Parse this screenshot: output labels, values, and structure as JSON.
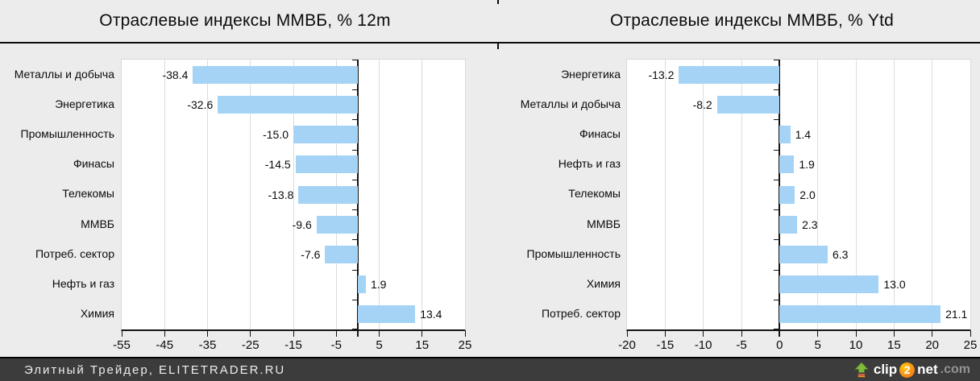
{
  "page": {
    "background": "#ECECEC"
  },
  "chart_data": [
    {
      "type": "bar",
      "orientation": "horizontal",
      "title": "Отраслевые индексы ММВБ, % 12m",
      "categories": [
        "Металлы и добыча",
        "Энергетика",
        "Промышленность",
        "Финасы",
        "Телекомы",
        "ММВБ",
        "Потреб. сектор",
        "Нефть и газ",
        "Химия"
      ],
      "values": [
        -38.4,
        -32.6,
        -15.0,
        -14.5,
        -13.8,
        -9.6,
        -7.6,
        1.9,
        13.4
      ],
      "value_label_format": "0.0",
      "xlim": [
        -55,
        25
      ],
      "tick_step": 10,
      "tick_labels": [
        "-55",
        "-45",
        "-35",
        "-25",
        "-15",
        "-5",
        "5",
        "15",
        "25"
      ],
      "xlabel": "",
      "ylabel": "",
      "grid": true,
      "legend": "none",
      "bar_color": "#A4D3F6",
      "grid_color": "#DCDCDC",
      "axis_color": "#141414"
    },
    {
      "type": "bar",
      "orientation": "horizontal",
      "title": "Отраслевые индексы ММВБ, % Ytd",
      "categories": [
        "Энергетика",
        "Металлы и добыча",
        "Финасы",
        "Нефть и газ",
        "Телекомы",
        "ММВБ",
        "Промышленность",
        "Химия",
        "Потреб. сектор"
      ],
      "values": [
        -13.2,
        -8.2,
        1.4,
        1.9,
        2.0,
        2.3,
        6.3,
        13.0,
        21.1
      ],
      "value_label_format": "0.0",
      "xlim": [
        -20,
        25
      ],
      "tick_step": 5,
      "tick_labels": [
        "-20",
        "-15",
        "-10",
        "-5",
        "0",
        "5",
        "10",
        "15",
        "20",
        "25"
      ],
      "xlabel": "",
      "ylabel": "",
      "grid": true,
      "legend": "none",
      "bar_color": "#A4D3F6",
      "grid_color": "#DCDCDC",
      "axis_color": "#141414"
    }
  ],
  "footer": {
    "source_text": "Элитный Трейдер, ELITETRADER.RU",
    "bg_color": "#3C3C3C",
    "watermark": {
      "prefix": "clip",
      "number": "2",
      "suffix": "net",
      "tld": ".com"
    }
  }
}
